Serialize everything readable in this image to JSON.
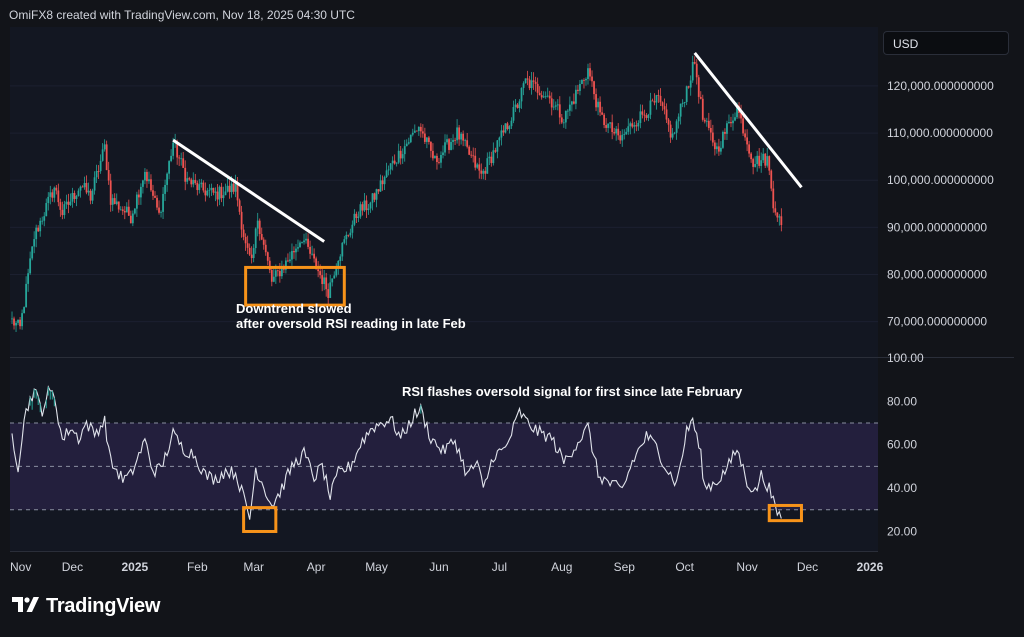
{
  "header": {
    "text": "OmiFX8 created with TradingView.com, Nov 18, 2025 04:30 UTC"
  },
  "currency": "USD",
  "brand": {
    "name": "TradingView",
    "logo_icon": "tradingview-logo-icon"
  },
  "colors": {
    "background": "#121419",
    "panel": "#131722",
    "up": "#26a69a",
    "down": "#ef5350",
    "rsi_line": "#e0e3eb",
    "rsi_band": "#2a2347",
    "highlight": "#f7931a",
    "trendline": "#ffffff",
    "text": "#d1d4dc"
  },
  "chart_data": [
    {
      "type": "candlestick",
      "title": "",
      "xlabel": "",
      "ylabel": "USD",
      "ylim": [
        62500,
        132500
      ],
      "x_ticks": [
        "Nov",
        "Dec",
        "2025",
        "Feb",
        "Mar",
        "Apr",
        "May",
        "Jun",
        "Jul",
        "Aug",
        "Sep",
        "Oct",
        "Nov",
        "Dec",
        "2026"
      ],
      "y_ticks": [
        "70,000.000000000",
        "80,000.000000000",
        "90,000.000000000",
        "100,000.000000000",
        "110,000.000000000",
        "120,000.000000000"
      ],
      "series": [
        {
          "values": [
            [
              "2024-11-01",
              70200
            ],
            [
              "2024-11-05",
              68500
            ],
            [
              "2024-11-12",
              88000
            ],
            [
              "2024-11-22",
              98500
            ],
            [
              "2024-11-26",
              93000
            ],
            [
              "2024-12-05",
              99000
            ],
            [
              "2024-12-10",
              96500
            ],
            [
              "2024-12-17",
              107000
            ],
            [
              "2024-12-20",
              96000
            ],
            [
              "2024-12-30",
              92300
            ],
            [
              "2025-01-06",
              102000
            ],
            [
              "2025-01-13",
              92500
            ],
            [
              "2025-01-20",
              108000
            ],
            [
              "2025-01-27",
              100000
            ],
            [
              "2025-02-03",
              98000
            ],
            [
              "2025-02-10",
              97000
            ],
            [
              "2025-02-20",
              98500
            ],
            [
              "2025-02-25",
              86000
            ],
            [
              "2025-02-28",
              82000
            ],
            [
              "2025-03-03",
              92000
            ],
            [
              "2025-03-10",
              78500
            ],
            [
              "2025-03-18",
              83000
            ],
            [
              "2025-03-25",
              88000
            ],
            [
              "2025-03-31",
              82500
            ],
            [
              "2025-04-07",
              76500
            ],
            [
              "2025-04-12",
              84000
            ],
            [
              "2025-04-22",
              93500
            ],
            [
              "2025-04-28",
              95000
            ],
            [
              "2025-05-08",
              103000
            ],
            [
              "2025-05-22",
              111500
            ],
            [
              "2025-05-30",
              104000
            ],
            [
              "2025-06-10",
              110000
            ],
            [
              "2025-06-22",
              101000
            ],
            [
              "2025-06-30",
              107500
            ],
            [
              "2025-07-10",
              116000
            ],
            [
              "2025-07-14",
              121000
            ],
            [
              "2025-07-25",
              118000
            ],
            [
              "2025-08-02",
              113000
            ],
            [
              "2025-08-14",
              123500
            ],
            [
              "2025-08-20",
              113500
            ],
            [
              "2025-08-30",
              108500
            ],
            [
              "2025-09-05",
              112000
            ],
            [
              "2025-09-18",
              117000
            ],
            [
              "2025-09-25",
              109000
            ],
            [
              "2025-10-01",
              118000
            ],
            [
              "2025-10-06",
              125000
            ],
            [
              "2025-10-10",
              113000
            ],
            [
              "2025-10-17",
              106500
            ],
            [
              "2025-10-27",
              115500
            ],
            [
              "2025-11-04",
              104000
            ],
            [
              "2025-11-11",
              104500
            ],
            [
              "2025-11-14",
              95500
            ],
            [
              "2025-11-18",
              90500
            ]
          ]
        }
      ]
    },
    {
      "type": "line",
      "title": "",
      "xlabel": "",
      "ylabel": "",
      "ylim": [
        11,
        100
      ],
      "y_ticks": [
        "20.00",
        "40.00",
        "60.00",
        "80.00",
        "100.00"
      ],
      "levels": [
        70,
        50,
        30
      ],
      "annotation": "RSI flashes oversold signal for first since late February",
      "series": [
        {
          "values": [
            [
              "2024-11-01",
              65
            ],
            [
              "2024-11-04",
              50
            ],
            [
              "2024-11-07",
              72
            ],
            [
              "2024-11-10",
              81
            ],
            [
              "2024-11-12",
              85
            ],
            [
              "2024-11-16",
              76
            ],
            [
              "2024-11-19",
              84
            ],
            [
              "2024-11-22",
              83
            ],
            [
              "2024-11-26",
              62
            ],
            [
              "2024-11-30",
              68
            ],
            [
              "2024-12-04",
              63
            ],
            [
              "2024-12-08",
              70
            ],
            [
              "2024-12-12",
              65
            ],
            [
              "2024-12-17",
              71
            ],
            [
              "2024-12-20",
              52
            ],
            [
              "2024-12-26",
              44
            ],
            [
              "2024-12-30",
              46
            ],
            [
              "2025-01-06",
              62
            ],
            [
              "2025-01-10",
              48
            ],
            [
              "2025-01-14",
              49
            ],
            [
              "2025-01-20",
              65
            ],
            [
              "2025-01-25",
              58
            ],
            [
              "2025-01-30",
              56
            ],
            [
              "2025-02-05",
              46
            ],
            [
              "2025-02-10",
              44
            ],
            [
              "2025-02-15",
              48
            ],
            [
              "2025-02-20",
              47
            ],
            [
              "2025-02-25",
              33
            ],
            [
              "2025-02-27",
              26
            ],
            [
              "2025-03-02",
              49
            ],
            [
              "2025-03-05",
              43
            ],
            [
              "2025-03-10",
              32
            ],
            [
              "2025-03-14",
              38
            ],
            [
              "2025-03-20",
              50
            ],
            [
              "2025-03-26",
              56
            ],
            [
              "2025-03-31",
              45
            ],
            [
              "2025-04-04",
              50
            ],
            [
              "2025-04-08",
              36
            ],
            [
              "2025-04-12",
              47
            ],
            [
              "2025-04-18",
              50
            ],
            [
              "2025-04-24",
              62
            ],
            [
              "2025-04-29",
              68
            ],
            [
              "2025-05-08",
              72
            ],
            [
              "2025-05-13",
              63
            ],
            [
              "2025-05-20",
              74
            ],
            [
              "2025-05-23",
              76
            ],
            [
              "2025-05-28",
              63
            ],
            [
              "2025-06-03",
              57
            ],
            [
              "2025-06-09",
              62
            ],
            [
              "2025-06-15",
              46
            ],
            [
              "2025-06-20",
              52
            ],
            [
              "2025-06-23",
              39
            ],
            [
              "2025-06-28",
              55
            ],
            [
              "2025-07-04",
              58
            ],
            [
              "2025-07-11",
              75
            ],
            [
              "2025-07-15",
              70
            ],
            [
              "2025-07-20",
              66
            ],
            [
              "2025-07-27",
              63
            ],
            [
              "2025-08-02",
              52
            ],
            [
              "2025-08-08",
              60
            ],
            [
              "2025-08-14",
              68
            ],
            [
              "2025-08-19",
              46
            ],
            [
              "2025-08-25",
              42
            ],
            [
              "2025-08-31",
              39
            ],
            [
              "2025-09-05",
              52
            ],
            [
              "2025-09-12",
              64
            ],
            [
              "2025-09-17",
              59
            ],
            [
              "2025-09-22",
              49
            ],
            [
              "2025-09-27",
              42
            ],
            [
              "2025-10-02",
              66
            ],
            [
              "2025-10-05",
              72
            ],
            [
              "2025-10-09",
              55
            ],
            [
              "2025-10-11",
              40
            ],
            [
              "2025-10-17",
              43
            ],
            [
              "2025-10-22",
              49
            ],
            [
              "2025-10-27",
              58
            ],
            [
              "2025-11-01",
              43
            ],
            [
              "2025-11-05",
              38
            ],
            [
              "2025-11-08",
              46
            ],
            [
              "2025-11-12",
              40
            ],
            [
              "2025-11-15",
              30
            ],
            [
              "2025-11-18",
              26
            ]
          ]
        }
      ]
    }
  ],
  "annotations": {
    "price_note_line1": "Downtrend slowed",
    "price_note_line2": "after oversold RSI reading in late Feb"
  }
}
